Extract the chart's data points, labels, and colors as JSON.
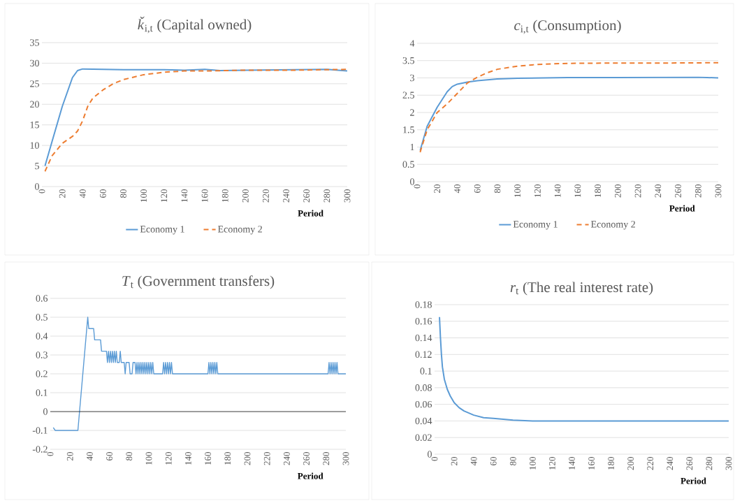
{
  "chart_data": [
    {
      "type": "line",
      "title": "*ǩ*$_{i,t}$ (Capital owned)",
      "xlabel": "Period",
      "xlim": [
        0,
        300
      ],
      "xticks": [
        0,
        20,
        40,
        60,
        80,
        100,
        120,
        140,
        160,
        180,
        200,
        220,
        240,
        260,
        280,
        300
      ],
      "ylim": [
        0,
        35
      ],
      "yticks": [
        0,
        5,
        10,
        15,
        20,
        25,
        30,
        35
      ],
      "grid": "y",
      "legend": "bottom",
      "marker": "none",
      "series": [
        {
          "name": "Economy 1",
          "color": "#5b9bd5",
          "line_style": "solid",
          "x": [
            3,
            10,
            20,
            30,
            35,
            40,
            60,
            80,
            100,
            120,
            140,
            160,
            175,
            200,
            240,
            280,
            300
          ],
          "values": [
            5,
            11,
            19.5,
            26.5,
            28.2,
            28.6,
            28.5,
            28.4,
            28.4,
            28.4,
            28.3,
            28.5,
            28.2,
            28.3,
            28.4,
            28.5,
            28.1
          ]
        },
        {
          "name": "Economy 2",
          "color": "#ed7d31",
          "line_style": "dashed",
          "x": [
            3,
            10,
            20,
            30,
            35,
            40,
            45,
            50,
            60,
            70,
            80,
            100,
            120,
            140,
            160,
            200,
            250,
            300
          ],
          "values": [
            3.7,
            7.5,
            10.5,
            12.2,
            13.5,
            16,
            19.5,
            21.5,
            23.5,
            25,
            26,
            27.2,
            27.8,
            28.1,
            28.1,
            28.3,
            28.3,
            28.5
          ]
        }
      ]
    },
    {
      "type": "line",
      "title": "*c*$_{i,t}$ (Consumption)",
      "xlabel": "Period",
      "xlim": [
        0,
        300
      ],
      "xticks": [
        0,
        20,
        40,
        60,
        80,
        100,
        120,
        140,
        160,
        180,
        200,
        220,
        240,
        260,
        280,
        300
      ],
      "ylim": [
        0,
        4
      ],
      "yticks": [
        0,
        0.5,
        1,
        1.5,
        2,
        2.5,
        3,
        3.5,
        4
      ],
      "grid": "y",
      "legend": "bottom",
      "marker": "none",
      "series": [
        {
          "name": "Economy 1",
          "color": "#5b9bd5",
          "line_style": "solid",
          "x": [
            3,
            10,
            20,
            30,
            35,
            40,
            50,
            60,
            80,
            100,
            150,
            200,
            280,
            300
          ],
          "values": [
            0.9,
            1.6,
            2.15,
            2.6,
            2.75,
            2.82,
            2.88,
            2.92,
            2.97,
            2.99,
            3.01,
            3.01,
            3.02,
            3.0
          ]
        },
        {
          "name": "Economy 2",
          "color": "#ed7d31",
          "line_style": "dashed",
          "x": [
            3,
            10,
            20,
            30,
            40,
            50,
            60,
            70,
            80,
            100,
            120,
            150,
            200,
            250,
            300
          ],
          "values": [
            0.85,
            1.5,
            2.0,
            2.25,
            2.55,
            2.85,
            3.02,
            3.15,
            3.25,
            3.34,
            3.39,
            3.42,
            3.43,
            3.43,
            3.44
          ]
        }
      ]
    },
    {
      "type": "line",
      "title": "*T*$_{t}$ (Government transfers)",
      "xlabel": "Period",
      "xlim": [
        0,
        300
      ],
      "xticks": [
        0,
        20,
        40,
        60,
        80,
        100,
        120,
        140,
        160,
        180,
        200,
        220,
        240,
        260,
        280,
        300
      ],
      "ylim": [
        -0.2,
        0.6
      ],
      "yticks": [
        -0.2,
        -0.1,
        0,
        0.1,
        0.2,
        0.3,
        0.4,
        0.5,
        0.6
      ],
      "grid": "y",
      "marker": "none",
      "ref_lines": [
        {
          "axis": "y",
          "value": 0,
          "color": "#000000"
        }
      ],
      "series": [
        {
          "color": "#5b9bd5",
          "line_style": "solid",
          "x": [
            3,
            5,
            28,
            38,
            39,
            44,
            45,
            51,
            52,
            57,
            58,
            59,
            60,
            61,
            62,
            63,
            64,
            65,
            66,
            67,
            68,
            70,
            71,
            72,
            75,
            76,
            77,
            80,
            81,
            83,
            84,
            86,
            87,
            88,
            89,
            90,
            91,
            92,
            93,
            94,
            95,
            96,
            97,
            98,
            99,
            100,
            101,
            102,
            103,
            104,
            105,
            114,
            115,
            116,
            117,
            118,
            119,
            120,
            121,
            122,
            123,
            124,
            160,
            161,
            162,
            163,
            164,
            165,
            166,
            167,
            168,
            169,
            170,
            282,
            283,
            284,
            285,
            286,
            287,
            288,
            289,
            290,
            291,
            292,
            300
          ],
          "values": [
            -0.085,
            -0.1,
            -0.1,
            0.5,
            0.44,
            0.44,
            0.38,
            0.38,
            0.32,
            0.32,
            0.26,
            0.32,
            0.26,
            0.32,
            0.26,
            0.32,
            0.26,
            0.32,
            0.26,
            0.32,
            0.26,
            0.26,
            0.32,
            0.26,
            0.26,
            0.2,
            0.26,
            0.26,
            0.2,
            0.2,
            0.26,
            0.26,
            0.2,
            0.26,
            0.2,
            0.26,
            0.2,
            0.26,
            0.2,
            0.26,
            0.2,
            0.26,
            0.2,
            0.26,
            0.2,
            0.26,
            0.2,
            0.26,
            0.2,
            0.26,
            0.2,
            0.2,
            0.26,
            0.2,
            0.26,
            0.2,
            0.26,
            0.2,
            0.26,
            0.2,
            0.26,
            0.2,
            0.2,
            0.26,
            0.2,
            0.26,
            0.2,
            0.26,
            0.2,
            0.26,
            0.2,
            0.26,
            0.2,
            0.2,
            0.26,
            0.2,
            0.26,
            0.2,
            0.26,
            0.2,
            0.26,
            0.2,
            0.26,
            0.2,
            0.2
          ]
        }
      ]
    },
    {
      "type": "line",
      "title": "*r*$_{t}$ (The real interest rate)",
      "xlabel": "Period",
      "xlim": [
        0,
        300
      ],
      "xticks": [
        0,
        20,
        40,
        60,
        80,
        100,
        120,
        140,
        160,
        180,
        200,
        220,
        240,
        260,
        280,
        300
      ],
      "ylim": [
        0,
        0.18
      ],
      "yticks": [
        0,
        0.02,
        0.04,
        0.06,
        0.08,
        0.1,
        0.12,
        0.14,
        0.16,
        0.18
      ],
      "grid": "y",
      "marker": "none",
      "series": [
        {
          "color": "#5b9bd5",
          "line_style": "solid",
          "x": [
            5,
            6,
            7,
            8,
            10,
            13,
            16,
            20,
            25,
            30,
            40,
            50,
            60,
            80,
            100,
            150,
            300
          ],
          "values": [
            0.165,
            0.14,
            0.12,
            0.105,
            0.09,
            0.078,
            0.07,
            0.062,
            0.056,
            0.052,
            0.047,
            0.044,
            0.043,
            0.041,
            0.04,
            0.04,
            0.04
          ]
        }
      ]
    }
  ]
}
